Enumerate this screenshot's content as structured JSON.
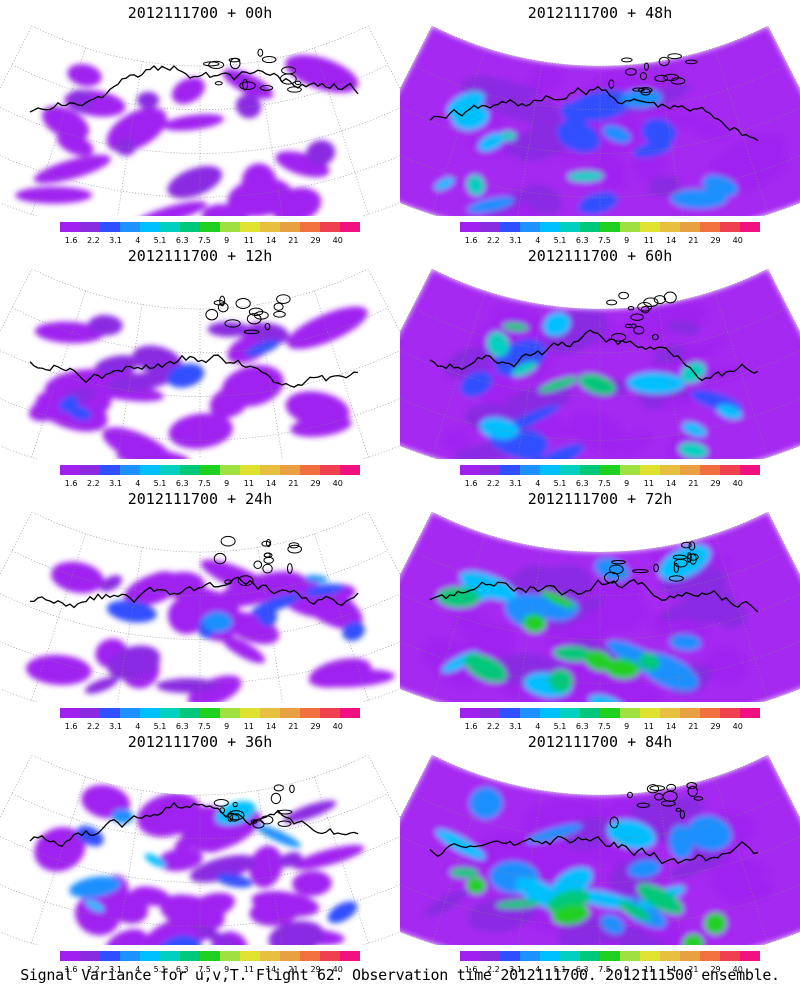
{
  "panels": [
    {
      "title": "2012111700 + 00h",
      "intensity": 0.15
    },
    {
      "title": "2012111700 + 48h",
      "intensity": 0.55
    },
    {
      "title": "2012111700 + 12h",
      "intensity": 0.25
    },
    {
      "title": "2012111700 + 60h",
      "intensity": 0.65
    },
    {
      "title": "2012111700 + 24h",
      "intensity": 0.32
    },
    {
      "title": "2012111700 + 72h",
      "intensity": 0.75
    },
    {
      "title": "2012111700 + 36h",
      "intensity": 0.42
    },
    {
      "title": "2012111700 + 84h",
      "intensity": 0.8
    }
  ],
  "colorbar": {
    "labels": [
      "1.6",
      "2.2",
      "3.1",
      "4",
      "5.1",
      "6.3",
      "7.5",
      "9",
      "11",
      "14",
      "21",
      "29",
      "40"
    ],
    "colors": [
      "#a020f0",
      "#8a2be2",
      "#3050ff",
      "#1e90ff",
      "#00bfff",
      "#00d0c0",
      "#00c87a",
      "#20d020",
      "#a0e040",
      "#e0e030",
      "#e8c040",
      "#e8a040",
      "#f07040",
      "#f04050",
      "#f01080"
    ]
  },
  "caption": "Signal Variance for u,v,T. Flight 62. Observation time 2012111700. 2012111500 ensemble."
}
